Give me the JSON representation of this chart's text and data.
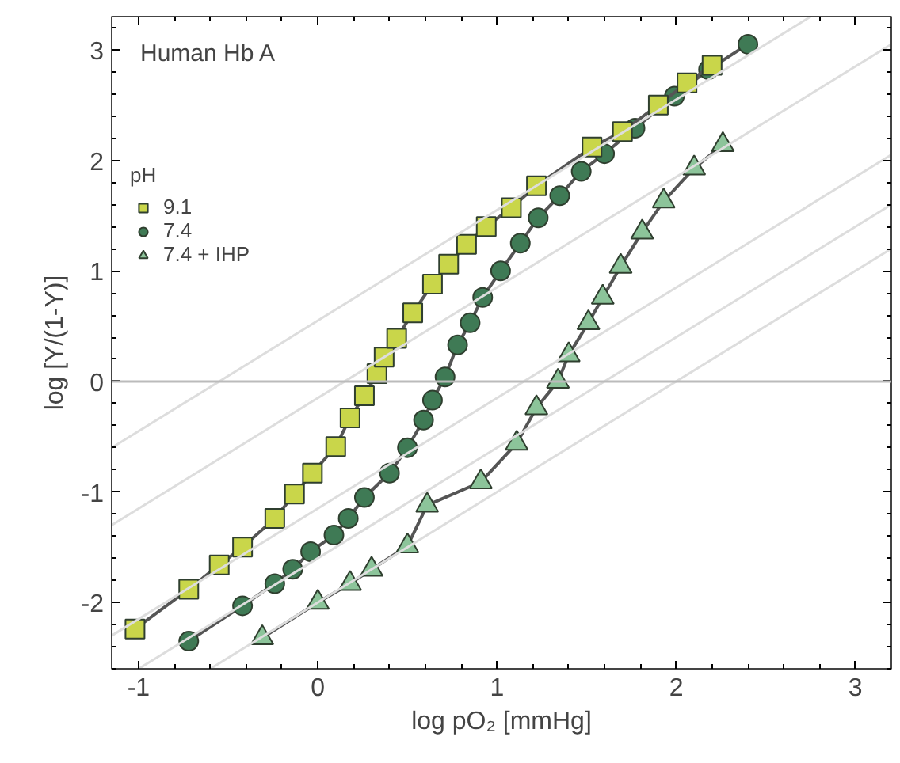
{
  "chart_data": {
    "type": "line",
    "xlabel": "log pO₂ [mmHg]",
    "ylabel": "log [Y/(1-Y)]",
    "legend_title": "pH",
    "annotations": [
      "Human Hb A"
    ],
    "xlim": [
      -1.15,
      3.2
    ],
    "ylim": [
      -2.6,
      3.3
    ],
    "xticks": [
      -1,
      0,
      1,
      2,
      3
    ],
    "yticks": [
      -2,
      -1,
      0,
      1,
      2,
      3
    ],
    "grid": false,
    "legend": "top left",
    "ref_lines": [
      {
        "axis": "y",
        "value": 0,
        "color": "#bbbbbb"
      }
    ],
    "series": [
      {
        "color": "#dddddd",
        "marker": "none",
        "x": [
          -1.15,
          2.75
        ],
        "values": [
          -0.6,
          3.3
        ]
      },
      {
        "color": "#dddddd",
        "marker": "none",
        "x": [
          -1.15,
          3.2
        ],
        "values": [
          -1.3,
          3.05
        ]
      },
      {
        "color": "#dddddd",
        "marker": "none",
        "x": [
          -1.15,
          3.2
        ],
        "values": [
          -2.3,
          2.05
        ]
      },
      {
        "color": "#dddddd",
        "marker": "none",
        "x": [
          -1.0,
          3.2
        ],
        "values": [
          -2.6,
          1.6
        ]
      },
      {
        "color": "#dddddd",
        "marker": "none",
        "x": [
          -0.6,
          3.2
        ],
        "values": [
          -2.6,
          1.2
        ]
      },
      {
        "name": "9.1",
        "color": "#c9d64a",
        "marker": "square",
        "x": [
          -1.02,
          -0.72,
          -0.55,
          -0.42,
          -0.24,
          -0.13,
          -0.03,
          0.1,
          0.18,
          0.26,
          0.33,
          0.37,
          0.44,
          0.53,
          0.64,
          0.73,
          0.83,
          0.94,
          1.08,
          1.22,
          1.53,
          1.7,
          1.9,
          2.06,
          2.2
        ],
        "values": [
          -2.24,
          -1.88,
          -1.66,
          -1.5,
          -1.24,
          -1.02,
          -0.83,
          -0.59,
          -0.33,
          -0.13,
          0.07,
          0.22,
          0.39,
          0.62,
          0.88,
          1.06,
          1.24,
          1.4,
          1.57,
          1.77,
          2.12,
          2.26,
          2.5,
          2.7,
          2.86
        ]
      },
      {
        "name": "7.4",
        "color": "#3f7a55",
        "marker": "circle",
        "x": [
          -0.72,
          -0.42,
          -0.24,
          -0.14,
          -0.04,
          0.09,
          0.17,
          0.26,
          0.4,
          0.5,
          0.59,
          0.64,
          0.71,
          0.78,
          0.85,
          0.92,
          1.02,
          1.13,
          1.23,
          1.35,
          1.47,
          1.6,
          1.77,
          1.99,
          2.18,
          2.4
        ],
        "values": [
          -2.35,
          -2.03,
          -1.83,
          -1.7,
          -1.54,
          -1.39,
          -1.24,
          -1.05,
          -0.83,
          -0.6,
          -0.35,
          -0.17,
          0.04,
          0.33,
          0.53,
          0.76,
          1.0,
          1.25,
          1.48,
          1.68,
          1.9,
          2.06,
          2.29,
          2.58,
          2.82,
          3.05
        ]
      },
      {
        "name": "7.4 + IHP",
        "color": "#8cc49a",
        "marker": "triangle",
        "x": [
          -0.31,
          0.0,
          0.18,
          0.3,
          0.5,
          0.61,
          0.91,
          1.11,
          1.22,
          1.34,
          1.4,
          1.51,
          1.59,
          1.69,
          1.81,
          1.93,
          2.1,
          2.26
        ],
        "values": [
          -2.32,
          -2.0,
          -1.83,
          -1.7,
          -1.49,
          -1.12,
          -0.91,
          -0.56,
          -0.24,
          0.0,
          0.24,
          0.53,
          0.76,
          1.04,
          1.35,
          1.63,
          1.93,
          2.14
        ]
      }
    ]
  }
}
